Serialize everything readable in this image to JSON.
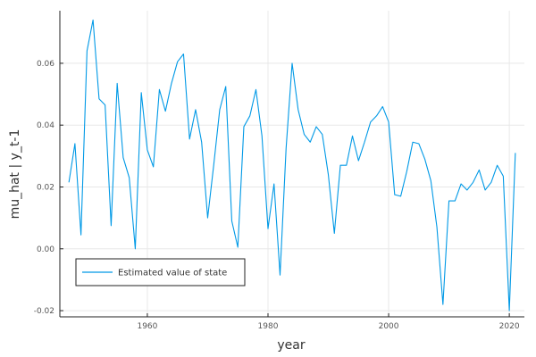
{
  "chart_data": {
    "type": "line",
    "xlabel": "year",
    "ylabel": "mu_hat | y_t-1",
    "xlim": [
      1945.5,
      2022.5
    ],
    "ylim": [
      -0.022,
      0.077
    ],
    "x_ticks": [
      1960,
      1980,
      2000,
      2020
    ],
    "y_ticks": [
      -0.02,
      0.0,
      0.02,
      0.04,
      0.06
    ],
    "y_tick_labels": [
      "-0.02",
      "0.00",
      "0.02",
      "0.04",
      "0.06"
    ],
    "grid": true,
    "legend_position": "bottom-left",
    "series": [
      {
        "name": "Estimated value of state",
        "color": "#0099e6",
        "x": [
          1947,
          1948,
          1949,
          1950,
          1951,
          1952,
          1953,
          1954,
          1955,
          1956,
          1957,
          1958,
          1959,
          1960,
          1961,
          1962,
          1963,
          1964,
          1965,
          1966,
          1967,
          1968,
          1969,
          1970,
          1971,
          1972,
          1973,
          1974,
          1975,
          1976,
          1977,
          1978,
          1979,
          1980,
          1981,
          1982,
          1983,
          1984,
          1985,
          1986,
          1987,
          1988,
          1989,
          1990,
          1991,
          1992,
          1993,
          1994,
          1995,
          1996,
          1997,
          1998,
          1999,
          2000,
          2001,
          2002,
          2003,
          2004,
          2005,
          2006,
          2007,
          2008,
          2009,
          2010,
          2011,
          2012,
          2013,
          2014,
          2015,
          2016,
          2017,
          2018,
          2019,
          2020,
          2021
        ],
        "values": [
          0.0215,
          0.034,
          0.0045,
          0.064,
          0.074,
          0.0485,
          0.0465,
          0.0075,
          0.0535,
          0.0295,
          0.023,
          0.0,
          0.0505,
          0.032,
          0.0265,
          0.0515,
          0.0445,
          0.0535,
          0.0605,
          0.063,
          0.0355,
          0.045,
          0.0345,
          0.01,
          0.027,
          0.045,
          0.0525,
          0.009,
          0.0005,
          0.0395,
          0.043,
          0.0515,
          0.0365,
          0.0065,
          0.021,
          -0.0085,
          0.0325,
          0.06,
          0.045,
          0.037,
          0.0345,
          0.0395,
          0.037,
          0.024,
          0.005,
          0.027,
          0.027,
          0.0365,
          0.0285,
          0.0345,
          0.041,
          0.043,
          0.046,
          0.041,
          0.0175,
          0.017,
          0.025,
          0.0345,
          0.034,
          0.029,
          0.022,
          0.007,
          -0.018,
          0.0155,
          0.0155,
          0.021,
          0.019,
          0.0215,
          0.0255,
          0.019,
          0.0215,
          0.027,
          0.0235,
          -0.02,
          0.031
        ]
      }
    ]
  }
}
